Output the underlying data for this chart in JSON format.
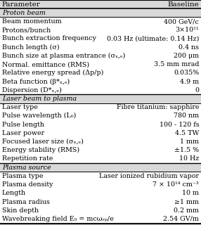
{
  "header": [
    "Parameter",
    "Baseline"
  ],
  "sections": [
    {
      "section_title": "Proton beam",
      "rows": [
        [
          "Beam momentum",
          "400 GeV/c"
        ],
        [
          "Protons/bunch",
          "3×10¹¹"
        ],
        [
          "Bunch extraction frequency",
          "0.03 Hz (ultimate: 0.14 Hz)"
        ],
        [
          "Bunch length (σ)",
          "0.4 ns"
        ],
        [
          "Bunch size at plasma entrance (σₓ,ₑ)",
          "200 μm"
        ],
        [
          "Normal. emittance (RMS)",
          "3.5 mm mrad"
        ],
        [
          "Relative energy spread (Δp/p)",
          "0.035%"
        ],
        [
          "Beta function (β*ₓ,ₑ)",
          "4.9 m"
        ],
        [
          "Dispersion (D*ₓ,ₑ)",
          "0"
        ]
      ]
    },
    {
      "section_title": "Laser beam to plasma",
      "rows": [
        [
          "Laser type",
          "Fibre titanium: sapphire"
        ],
        [
          "Pulse wavelength (L₀)",
          "780 nm"
        ],
        [
          "Pulse length",
          "100 - 120 fs"
        ],
        [
          "Laser power",
          "4.5 TW"
        ],
        [
          "Focused laser size (σₓ,ₑ)",
          "1 mm"
        ],
        [
          "Energy stability (RMS)",
          "±1.5 %"
        ],
        [
          "Repetition rate",
          "10 Hz"
        ]
      ]
    },
    {
      "section_title": "Plasma source",
      "rows": [
        [
          "Plasma type",
          "Laser ionized rubidium vapor"
        ],
        [
          "Plasma density",
          "7 × 10¹⁴ cm⁻³"
        ],
        [
          "Length",
          "10 m"
        ],
        [
          "Plasma radius",
          "≥1 mm"
        ],
        [
          "Skin depth",
          "0.2 mm"
        ],
        [
          "Wavebreaking field E₀ = mcωₑₚ/e",
          "2.54 GV/m"
        ]
      ]
    }
  ],
  "bg_color": "#d8d8d8",
  "text_color": "#000000",
  "fontsize": 6.8,
  "header_fontsize": 7.5
}
